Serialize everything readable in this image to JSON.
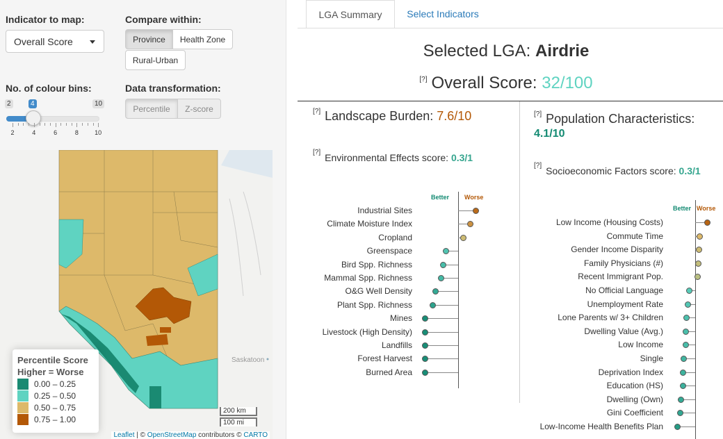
{
  "controls": {
    "indicator_label": "Indicator to map:",
    "indicator_value": "Overall Score",
    "compare_label": "Compare within:",
    "compare_options": [
      "Province",
      "Health Zone",
      "Rural-Urban"
    ],
    "bins_label": "No. of colour bins:",
    "bins_min": "2",
    "bins_value": "4",
    "bins_max": "10",
    "bins_ticks": [
      "2",
      "4",
      "6",
      "8",
      "10"
    ],
    "transform_label": "Data transformation:",
    "transform_options": [
      "Percentile",
      "Z-score"
    ]
  },
  "map": {
    "place_label": "Saskatoon",
    "scale_km": "200 km",
    "scale_mi": "100 mi",
    "attribution": {
      "leaflet": "Leaflet",
      "sep1": " | © ",
      "osm": "OpenStreetMap",
      "mid": " contributors © ",
      "carto": "CARTO"
    },
    "legend": {
      "title1": "Percentile Score",
      "title2": "Higher = Worse",
      "bins": [
        {
          "label": "0.00 – 0.25",
          "color": "#1a8a72"
        },
        {
          "label": "0.25 – 0.50",
          "color": "#5fd3c1"
        },
        {
          "label": "0.50 – 0.75",
          "color": "#ddb96a"
        },
        {
          "label": "0.75 – 1.00",
          "color": "#b35806"
        }
      ]
    }
  },
  "tabs": [
    "LGA Summary",
    "Select Indicators"
  ],
  "summary": {
    "title_prefix": "Selected LGA: ",
    "title_name": "Airdrie",
    "q": "[?]",
    "overall_label": "Overall Score: ",
    "overall_value": "32/100",
    "landscape_label": "Landscape Burden: ",
    "landscape_value": "7.6/10",
    "population_label": "Population Characteristics:",
    "population_value": "4.1/10",
    "env_label": "Environmental Effects score: ",
    "env_value": "0.3/1",
    "socio_label": "Socioeconomic Factors score: ",
    "socio_value": "0.3/1",
    "better": "Better",
    "worse": "Worse"
  },
  "colors": {
    "better": "#138a72",
    "worse": "#b35806",
    "teal_score": "#5fd3c1"
  },
  "env_indicators": [
    {
      "name": "Industrial Sites",
      "value": 0.95
    },
    {
      "name": "Climate Moisture Index",
      "value": 0.85
    },
    {
      "name": "Cropland",
      "value": 0.72
    },
    {
      "name": "Greenspace",
      "value": 0.4
    },
    {
      "name": "Bird Spp. Richness",
      "value": 0.35
    },
    {
      "name": "Mammal Spp. Richness",
      "value": 0.32
    },
    {
      "name": "O&G Well Density",
      "value": 0.22
    },
    {
      "name": "Plant Spp. Richness",
      "value": 0.17
    },
    {
      "name": "Mines",
      "value": 0.03
    },
    {
      "name": "Livestock (High Density)",
      "value": 0.03
    },
    {
      "name": "Landfills",
      "value": 0.03
    },
    {
      "name": "Forest Harvest",
      "value": 0.03
    },
    {
      "name": "Burned Area",
      "value": 0.03
    }
  ],
  "socio_indicators": [
    {
      "name": "Low Income (Housing Costs)",
      "value": 0.97
    },
    {
      "name": "Commute Time",
      "value": 0.75
    },
    {
      "name": "Gender Income Disparity",
      "value": 0.72
    },
    {
      "name": "Family Physicians (#)",
      "value": 0.7
    },
    {
      "name": "Recent Immigrant Pop.",
      "value": 0.68
    },
    {
      "name": "No Official Language",
      "value": 0.45
    },
    {
      "name": "Unemployment Rate",
      "value": 0.42
    },
    {
      "name": "Lone Parents w/ 3+ Children",
      "value": 0.38
    },
    {
      "name": "Dwelling Value (Avg.)",
      "value": 0.36
    },
    {
      "name": "Low Income",
      "value": 0.35
    },
    {
      "name": "Single",
      "value": 0.3
    },
    {
      "name": "Deprivation Index",
      "value": 0.28
    },
    {
      "name": "Education (HS)",
      "value": 0.27
    },
    {
      "name": "Dwelling (Own)",
      "value": 0.22
    },
    {
      "name": "Gini Coefficient",
      "value": 0.2
    },
    {
      "name": "Low-Income Health Benefits Plan",
      "value": 0.12
    }
  ]
}
